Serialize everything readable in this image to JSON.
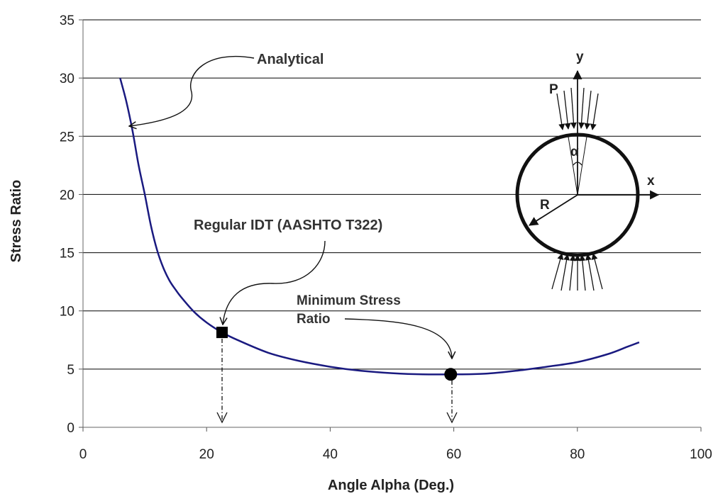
{
  "chart_data": {
    "type": "line",
    "xlabel": "Angle Alpha (Deg.)",
    "ylabel": "Stress Ratio",
    "xlim": [
      0,
      100
    ],
    "ylim": [
      0,
      35
    ],
    "xticks": [
      0,
      20,
      40,
      60,
      80,
      100
    ],
    "yticks": [
      0,
      5,
      10,
      15,
      20,
      25,
      30,
      35
    ],
    "grid": "horizontal",
    "line_color": "#1a1a80",
    "series": [
      {
        "x": [
          6,
          7,
          8,
          9,
          10,
          11,
          12,
          13,
          14,
          15,
          16,
          18,
          20,
          22.5,
          25,
          30,
          35,
          40,
          45,
          50,
          55,
          60,
          65,
          70,
          75,
          80,
          85,
          88,
          90
        ],
        "y": [
          30,
          28,
          25.5,
          22.5,
          20,
          17.3,
          15.2,
          13.7,
          12.6,
          11.8,
          11.1,
          9.9,
          9.0,
          8.15,
          7.5,
          6.4,
          5.7,
          5.2,
          4.85,
          4.65,
          4.55,
          4.55,
          4.6,
          4.85,
          5.2,
          5.6,
          6.3,
          6.9,
          7.3
        ]
      }
    ],
    "points": [
      {
        "label": "Regular IDT (AASHTO T322)",
        "x": 22.5,
        "y": 8.15,
        "marker": "square"
      },
      {
        "label": "Minimum Stress Ratio",
        "x": 59.5,
        "y": 4.55,
        "marker": "circle"
      }
    ],
    "annotations": {
      "analytical": "Analytical",
      "regular": "Regular IDT (AASHTO T322)",
      "minimum_line1": "Minimum Stress",
      "minimum_line2": "Ratio"
    },
    "diagram_labels": {
      "y": "y",
      "x": "x",
      "p": "P",
      "alpha": "α",
      "r": "R"
    }
  }
}
